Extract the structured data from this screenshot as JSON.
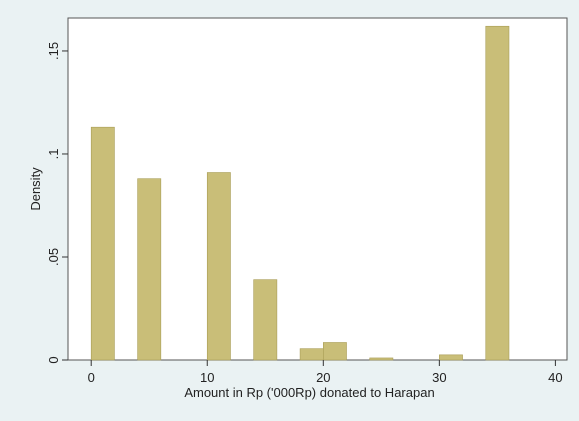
{
  "chart_data": {
    "type": "bar",
    "xlabel": "Amount in Rp ('000Rp) donated to Harapan",
    "ylabel": "Density",
    "xlim": [
      -2,
      41
    ],
    "ylim": [
      0,
      0.166
    ],
    "x_ticks": [
      0,
      10,
      20,
      30,
      40
    ],
    "x_tick_labels": [
      "0",
      "10",
      "20",
      "30",
      "40"
    ],
    "y_ticks": [
      0,
      0.05,
      0.1,
      0.15
    ],
    "y_tick_labels": [
      "0",
      ".05",
      ".1",
      ".15"
    ],
    "grid": false,
    "legend": false,
    "bar_color": "#c9be78",
    "bar_edge_color": "#a89c55",
    "bars": [
      {
        "x": 1,
        "value": 0.113
      },
      {
        "x": 5,
        "value": 0.088
      },
      {
        "x": 11,
        "value": 0.091
      },
      {
        "x": 15,
        "value": 0.039
      },
      {
        "x": 19,
        "value": 0.0055
      },
      {
        "x": 21,
        "value": 0.0085
      },
      {
        "x": 25,
        "value": 0.001
      },
      {
        "x": 31,
        "value": 0.0025
      },
      {
        "x": 35,
        "value": 0.162
      }
    ]
  }
}
